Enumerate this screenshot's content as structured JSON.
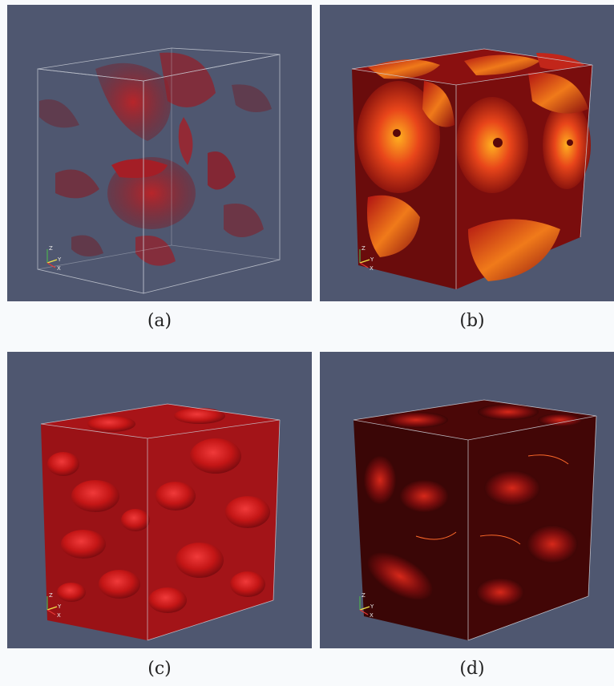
{
  "panels": [
    {
      "id": "a",
      "caption": "(a)"
    },
    {
      "id": "b",
      "caption": "(b)"
    },
    {
      "id": "c",
      "caption": "(c)"
    },
    {
      "id": "d",
      "caption": "(d)"
    }
  ],
  "axes": {
    "z": "Z",
    "y": "Y",
    "x": "X"
  },
  "colors": {
    "background": "#4f5770",
    "page": "#f8fafc",
    "red_iso": "#c41616",
    "orange_hot": "#ff9a1a",
    "dark_red": "#3a0606"
  }
}
